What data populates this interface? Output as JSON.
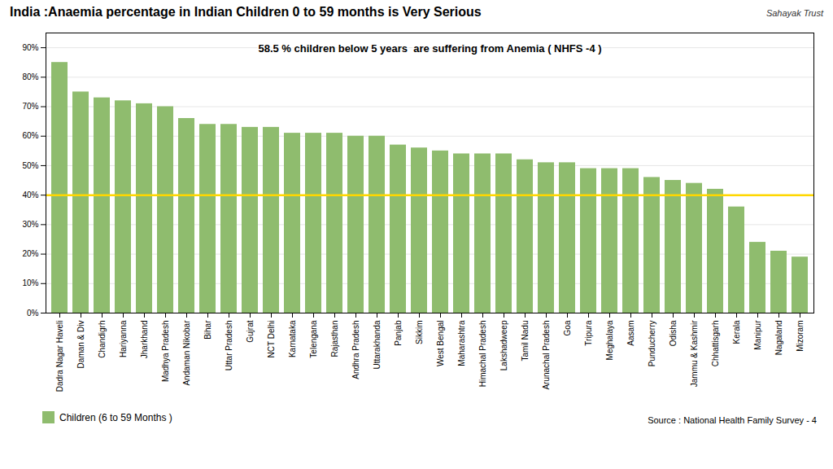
{
  "chart_data": {
    "type": "bar",
    "title": "India :Anaemia percentage in Indian Children 0 to 59 months is Very Serious",
    "logo_text": "Sahayak Trust",
    "categories": [
      "Dadra Nagar Haveli",
      "Daman & Div",
      "Chandigrh",
      "Hariyanna",
      "Jharkhand",
      "Madhya Pradesh",
      "Andaman Nikobar",
      "Bihar",
      "Uttar Pradesh",
      "Gujrat",
      "NCT Delhi",
      "Karnataka",
      "Telengana",
      "Rajasthan",
      "Andhra Pradesh",
      "Uttarakhanda",
      "Panjab",
      "Sikkim",
      "West Bengal",
      "Maharashtra",
      "Himachal Pradesh",
      "Lakshadweep",
      "Tamil Nadu",
      "Arunachal Pradesh",
      "Goa",
      "Tripura",
      "Meghalaya",
      "Aasam",
      "Punducherry",
      "Odisha",
      "Jammu & Kashmir",
      "Chhattisgarh",
      "Kerala",
      "Manipur",
      "Nagaland",
      "Mizoram"
    ],
    "series": [
      {
        "name": "Children (6 to 59 Months )",
        "color": "#8fbc6e",
        "values": [
          85,
          75,
          73,
          72,
          71,
          70,
          66,
          64,
          64,
          63,
          63,
          61,
          61,
          61,
          60,
          60,
          57,
          56,
          55,
          54,
          54,
          54,
          52,
          51,
          51,
          49,
          49,
          49,
          46,
          45,
          44,
          42,
          36,
          24,
          21,
          19
        ]
      }
    ],
    "ylim": [
      0,
      95
    ],
    "yticks": [
      {
        "value": 0,
        "label": "0%"
      },
      {
        "value": 10,
        "label": "10%"
      },
      {
        "value": 20,
        "label": "20%"
      },
      {
        "value": 30,
        "label": "30%"
      },
      {
        "value": 40,
        "label": "40%"
      },
      {
        "value": 50,
        "label": "50%"
      },
      {
        "value": 60,
        "label": "60%"
      },
      {
        "value": 70,
        "label": "70%"
      },
      {
        "value": 80,
        "label": "80%"
      },
      {
        "value": 90,
        "label": "90%"
      }
    ],
    "grid": true,
    "legend": "bottom",
    "hline": 40,
    "hline_color": "#ffd700",
    "annotations": [
      "58.5 % children below 5 years  are suffering from Anemia ( NHFS -4 )"
    ],
    "source": "Source : National Health Family Survey  - 4"
  }
}
